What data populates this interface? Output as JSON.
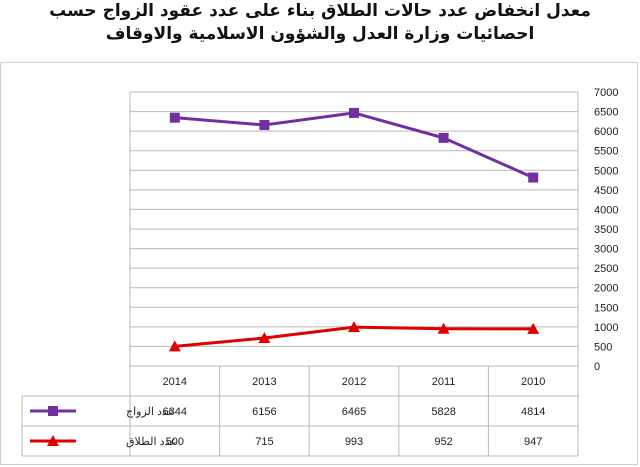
{
  "title": {
    "line1": "معدل انخفاض عدد حالات الطلاق بناء على عدد عقود الزواج حسب",
    "line2": "احصائيات وزارة العدل والشؤون الاسلامية والاوقاف"
  },
  "chart_data": {
    "type": "line",
    "title": "معدل انخفاض عدد حالات الطلاق بناء على عدد عقود الزواج حسب احصائيات وزارة العدل والشؤون الاسلامية والاوقاف",
    "categories": [
      "2014",
      "2013",
      "2012",
      "2011",
      "2010"
    ],
    "series": [
      {
        "name": "عدد الزواج",
        "values": [
          6344,
          6156,
          6465,
          5828,
          4814
        ],
        "color": "#7030a0",
        "marker": "square"
      },
      {
        "name": "عدد الطلاق",
        "values": [
          500,
          715,
          993,
          952,
          947
        ],
        "color": "#e00000",
        "marker": "triangle"
      }
    ],
    "ylim": [
      0,
      7000
    ],
    "ytick_step": 500,
    "y_axis_side": "right",
    "grid": true,
    "legend": "data-table"
  }
}
